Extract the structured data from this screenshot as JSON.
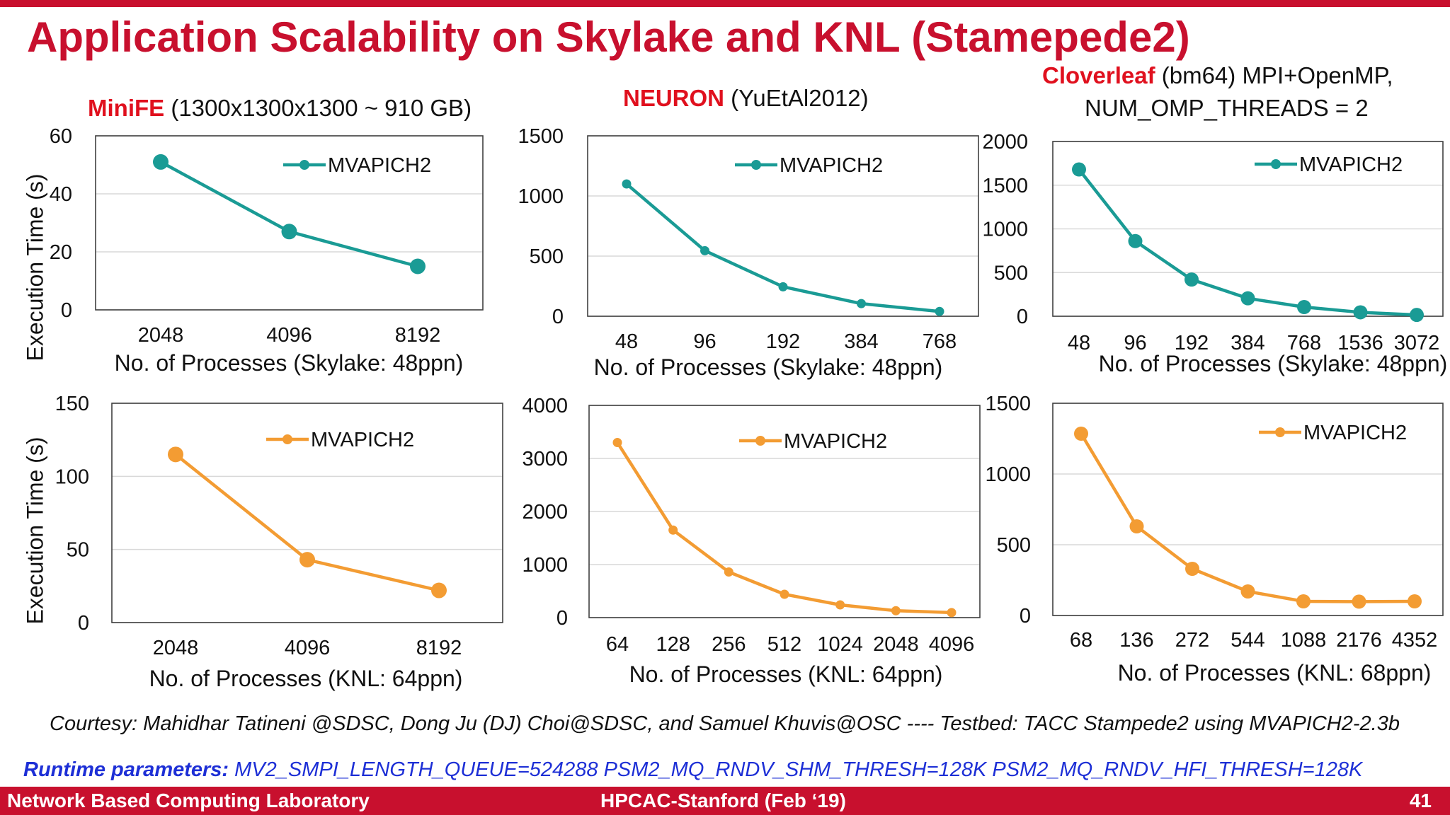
{
  "slide": {
    "title": "Application Scalability on Skylake and KNL (Stamepede2)",
    "subtitles": {
      "minife": {
        "name": "MiniFE",
        "rest": " (1300x1300x1300 ~ 910 GB)"
      },
      "neuron": {
        "name": "NEURON",
        "rest": " (YuEtAl2012)"
      },
      "cloverleaf": {
        "name": "Cloverleaf",
        "rest": " (bm64) MPI+OpenMP,",
        "line2": "NUM_OMP_THREADS = 2"
      }
    },
    "ylabel": "Execution Time (s)",
    "courtesy": "Courtesy: Mahidhar Tatineni @SDSC, Dong Ju (DJ) Choi@SDSC, and Samuel Khuvis@OSC  ---- Testbed: TACC Stampede2 using MVAPICH2-2.3b",
    "runtime_label": "Runtime parameters:",
    "runtime_value": " MV2_SMPI_LENGTH_QUEUE=524288 PSM2_MQ_RNDV_SHM_THRESH=128K PSM2_MQ_RNDV_HFI_THRESH=128K",
    "footer_left": "Network Based Computing Laboratory",
    "footer_center": "HPCAC-Stanford (Feb ‘19)",
    "footer_page": "41",
    "colors": {
      "accent": "#c8102e",
      "skylake": "#1a9b95",
      "knl": "#f39c33",
      "runtime": "#1d2fd6"
    }
  },
  "chart_data": [
    {
      "type": "line",
      "id": "minife-skylake",
      "categories": [
        "2048",
        "4096",
        "8192"
      ],
      "series": [
        {
          "name": "MVAPICH2",
          "values": [
            51,
            27,
            15
          ]
        }
      ],
      "xlabel": "No. of Processes (Skylake: 48ppn)",
      "ylim": [
        0,
        60
      ],
      "yticks": [
        0,
        20,
        40,
        60
      ],
      "legend": "top-right",
      "color": "#1a9b95",
      "marker": "large"
    },
    {
      "type": "line",
      "id": "neuron-skylake",
      "categories": [
        "48",
        "96",
        "192",
        "384",
        "768"
      ],
      "series": [
        {
          "name": "MVAPICH2",
          "values": [
            1100,
            545,
            245,
            105,
            40
          ]
        }
      ],
      "xlabel": "No. of Processes (Skylake: 48ppn)",
      "ylim": [
        0,
        1500
      ],
      "yticks": [
        0,
        500,
        1000,
        1500
      ],
      "legend": "top-right",
      "color": "#1a9b95",
      "marker": "small"
    },
    {
      "type": "line",
      "id": "cloverleaf-skylake",
      "categories": [
        "48",
        "96",
        "192",
        "384",
        "768",
        "1536",
        "3072"
      ],
      "series": [
        {
          "name": "MVAPICH2",
          "values": [
            1680,
            860,
            420,
            205,
            105,
            45,
            15
          ]
        }
      ],
      "xlabel": "No. of Processes (Skylake: 48ppn)",
      "ylim": [
        0,
        2000
      ],
      "yticks": [
        0,
        500,
        1000,
        1500,
        2000
      ],
      "legend": "top-right",
      "color": "#1a9b95",
      "marker": "large"
    },
    {
      "type": "line",
      "id": "minife-knl",
      "categories": [
        "2048",
        "4096",
        "8192"
      ],
      "series": [
        {
          "name": "MVAPICH2",
          "values": [
            115,
            43,
            22
          ]
        }
      ],
      "xlabel": "No. of Processes (KNL: 64ppn)",
      "ylim": [
        0,
        150
      ],
      "yticks": [
        0,
        50,
        100,
        150
      ],
      "legend": "top-right",
      "color": "#f39c33",
      "marker": "large"
    },
    {
      "type": "line",
      "id": "neuron-knl",
      "categories": [
        "64",
        "128",
        "256",
        "512",
        "1024",
        "2048",
        "4096"
      ],
      "series": [
        {
          "name": "MVAPICH2",
          "values": [
            3300,
            1650,
            860,
            440,
            240,
            130,
            95
          ]
        }
      ],
      "xlabel": "No. of Processes (KNL: 64ppn)",
      "ylim": [
        0,
        4000
      ],
      "yticks": [
        0,
        1000,
        2000,
        3000,
        4000
      ],
      "legend": "top-right",
      "color": "#f39c33",
      "marker": "small"
    },
    {
      "type": "line",
      "id": "cloverleaf-knl",
      "categories": [
        "68",
        "136",
        "272",
        "544",
        "1088",
        "2176",
        "4352"
      ],
      "series": [
        {
          "name": "MVAPICH2",
          "values": [
            1285,
            630,
            330,
            170,
            100,
            98,
            100
          ]
        }
      ],
      "xlabel": "No. of Processes (KNL: 68ppn)",
      "ylim": [
        0,
        1500
      ],
      "yticks": [
        0,
        500,
        1000,
        1500
      ],
      "legend": "top-right",
      "color": "#f39c33",
      "marker": "large"
    }
  ]
}
